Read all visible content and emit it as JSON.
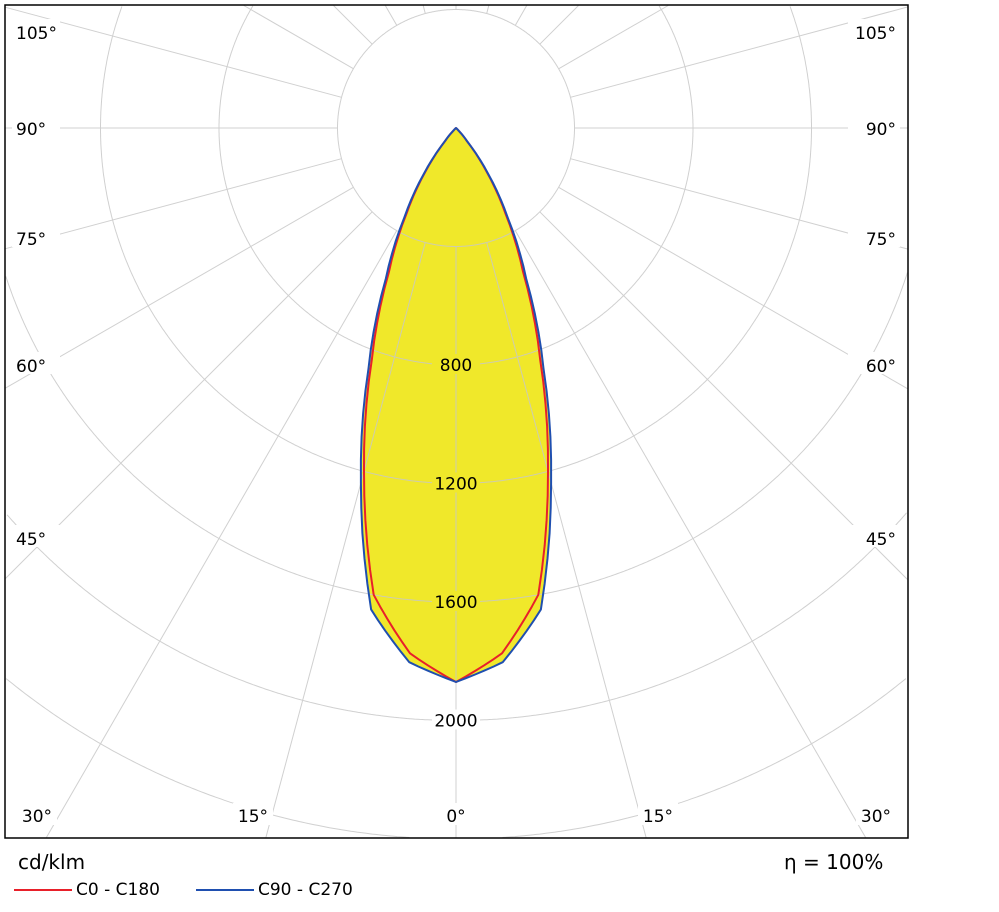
{
  "chart_data": {
    "type": "polar",
    "unit_label": "cd/klm",
    "efficiency_label": "η = 100%",
    "angle_unit": "degrees",
    "angle_tick_step": 15,
    "angle_labels_side": [
      "105°",
      "90°",
      "75°",
      "60°",
      "45°"
    ],
    "angle_labels_bottom": [
      "30°",
      "15°",
      "0°",
      "15°",
      "30°"
    ],
    "radial_ticks": [
      400,
      800,
      1200,
      1600,
      2000,
      2400
    ],
    "radial_tick_labels": [
      "800",
      "1200",
      "1600",
      "2000"
    ],
    "grid": true,
    "fill_color": "#f0e82a",
    "angles": [
      0,
      5,
      10,
      15,
      20,
      25,
      30,
      35,
      40,
      45,
      50
    ],
    "series": [
      {
        "name": "C0 - C180",
        "color": "#e8202a",
        "values": [
          1870,
          1780,
          1600,
          1200,
          830,
          535,
          335,
          180,
          55,
          8,
          0
        ]
      },
      {
        "name": "C90 - C270",
        "color": "#1f4fb0",
        "values": [
          1870,
          1810,
          1650,
          1240,
          864,
          560,
          350,
          190,
          60,
          10,
          0
        ]
      }
    ],
    "legend_placement": "bottom-left"
  }
}
